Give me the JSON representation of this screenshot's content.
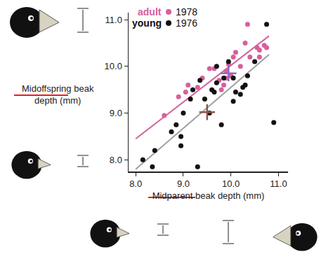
{
  "chart_data": {
    "type": "scatter",
    "x_label": "Midparent beak depth (mm)",
    "y_label": "Midoffspring beak depth (mm)",
    "xlim": [
      7.85,
      11.2
    ],
    "ylim": [
      7.75,
      11.15
    ],
    "xticks": [
      {
        "value": 8,
        "label": "8.0"
      },
      {
        "value": 9,
        "label": "9.0"
      },
      {
        "value": 10,
        "label": "10.0"
      },
      {
        "value": 11,
        "label": "11.0"
      }
    ],
    "yticks": [
      {
        "value": 8,
        "label": "8.0"
      },
      {
        "value": 9,
        "label": "9.0"
      },
      {
        "value": 10,
        "label": "10.0"
      },
      {
        "value": 11,
        "label": "11.0"
      }
    ],
    "grid": false,
    "series": [
      {
        "name": "1978",
        "label": "adult",
        "color": "#d6609c",
        "marker": "circle",
        "x": [
          8.6,
          8.9,
          9.05,
          9.1,
          9.3,
          9.4,
          9.55,
          9.65,
          9.75,
          9.8,
          9.85,
          9.9,
          9.95,
          10.0,
          10.05,
          10.1,
          10.2,
          10.3,
          10.35,
          10.4,
          10.55,
          10.6,
          10.6,
          10.7,
          10.75,
          9.9
        ],
        "values": [
          8.95,
          9.35,
          9.45,
          9.6,
          9.55,
          9.75,
          9.95,
          9.95,
          9.7,
          9.5,
          9.6,
          9.9,
          10.05,
          9.8,
          10.2,
          10.3,
          10.0,
          10.5,
          10.9,
          10.2,
          10.4,
          10.35,
          10.2,
          10.45,
          10.4,
          9.75
        ],
        "trend": {
          "x": [
            8.0,
            10.8
          ],
          "values": [
            8.45,
            10.65
          ],
          "color": "#d6609c"
        },
        "mean": {
          "x": 9.95,
          "y": 9.85,
          "color": "#d6609c"
        }
      },
      {
        "name": "1976",
        "label": "young",
        "color": "#111111",
        "marker": "circle",
        "x": [
          8.15,
          8.35,
          8.4,
          8.75,
          8.85,
          8.95,
          8.95,
          9.0,
          9.15,
          9.2,
          9.3,
          9.35,
          9.45,
          9.55,
          9.6,
          9.65,
          9.7,
          9.8,
          9.85,
          9.95,
          10.05,
          10.05,
          10.1,
          10.2,
          10.25,
          10.3,
          10.35,
          10.5,
          10.75,
          10.9,
          9.7
        ],
        "values": [
          8.0,
          7.85,
          8.2,
          8.6,
          8.75,
          8.5,
          8.3,
          9.0,
          9.3,
          9.5,
          7.85,
          9.7,
          9.3,
          9.0,
          9.5,
          9.45,
          9.65,
          8.75,
          9.75,
          10.1,
          9.75,
          9.25,
          9.45,
          9.4,
          9.55,
          9.6,
          9.8,
          10.1,
          10.9,
          8.8,
          10.0
        ],
        "trend": {
          "x": [
            8.0,
            10.8
          ],
          "values": [
            7.8,
            10.25
          ],
          "color": "#a0a0a0"
        },
        "mean": {
          "x": 9.5,
          "y": 9.02,
          "color": "#a0a0a0"
        }
      }
    ]
  }
}
